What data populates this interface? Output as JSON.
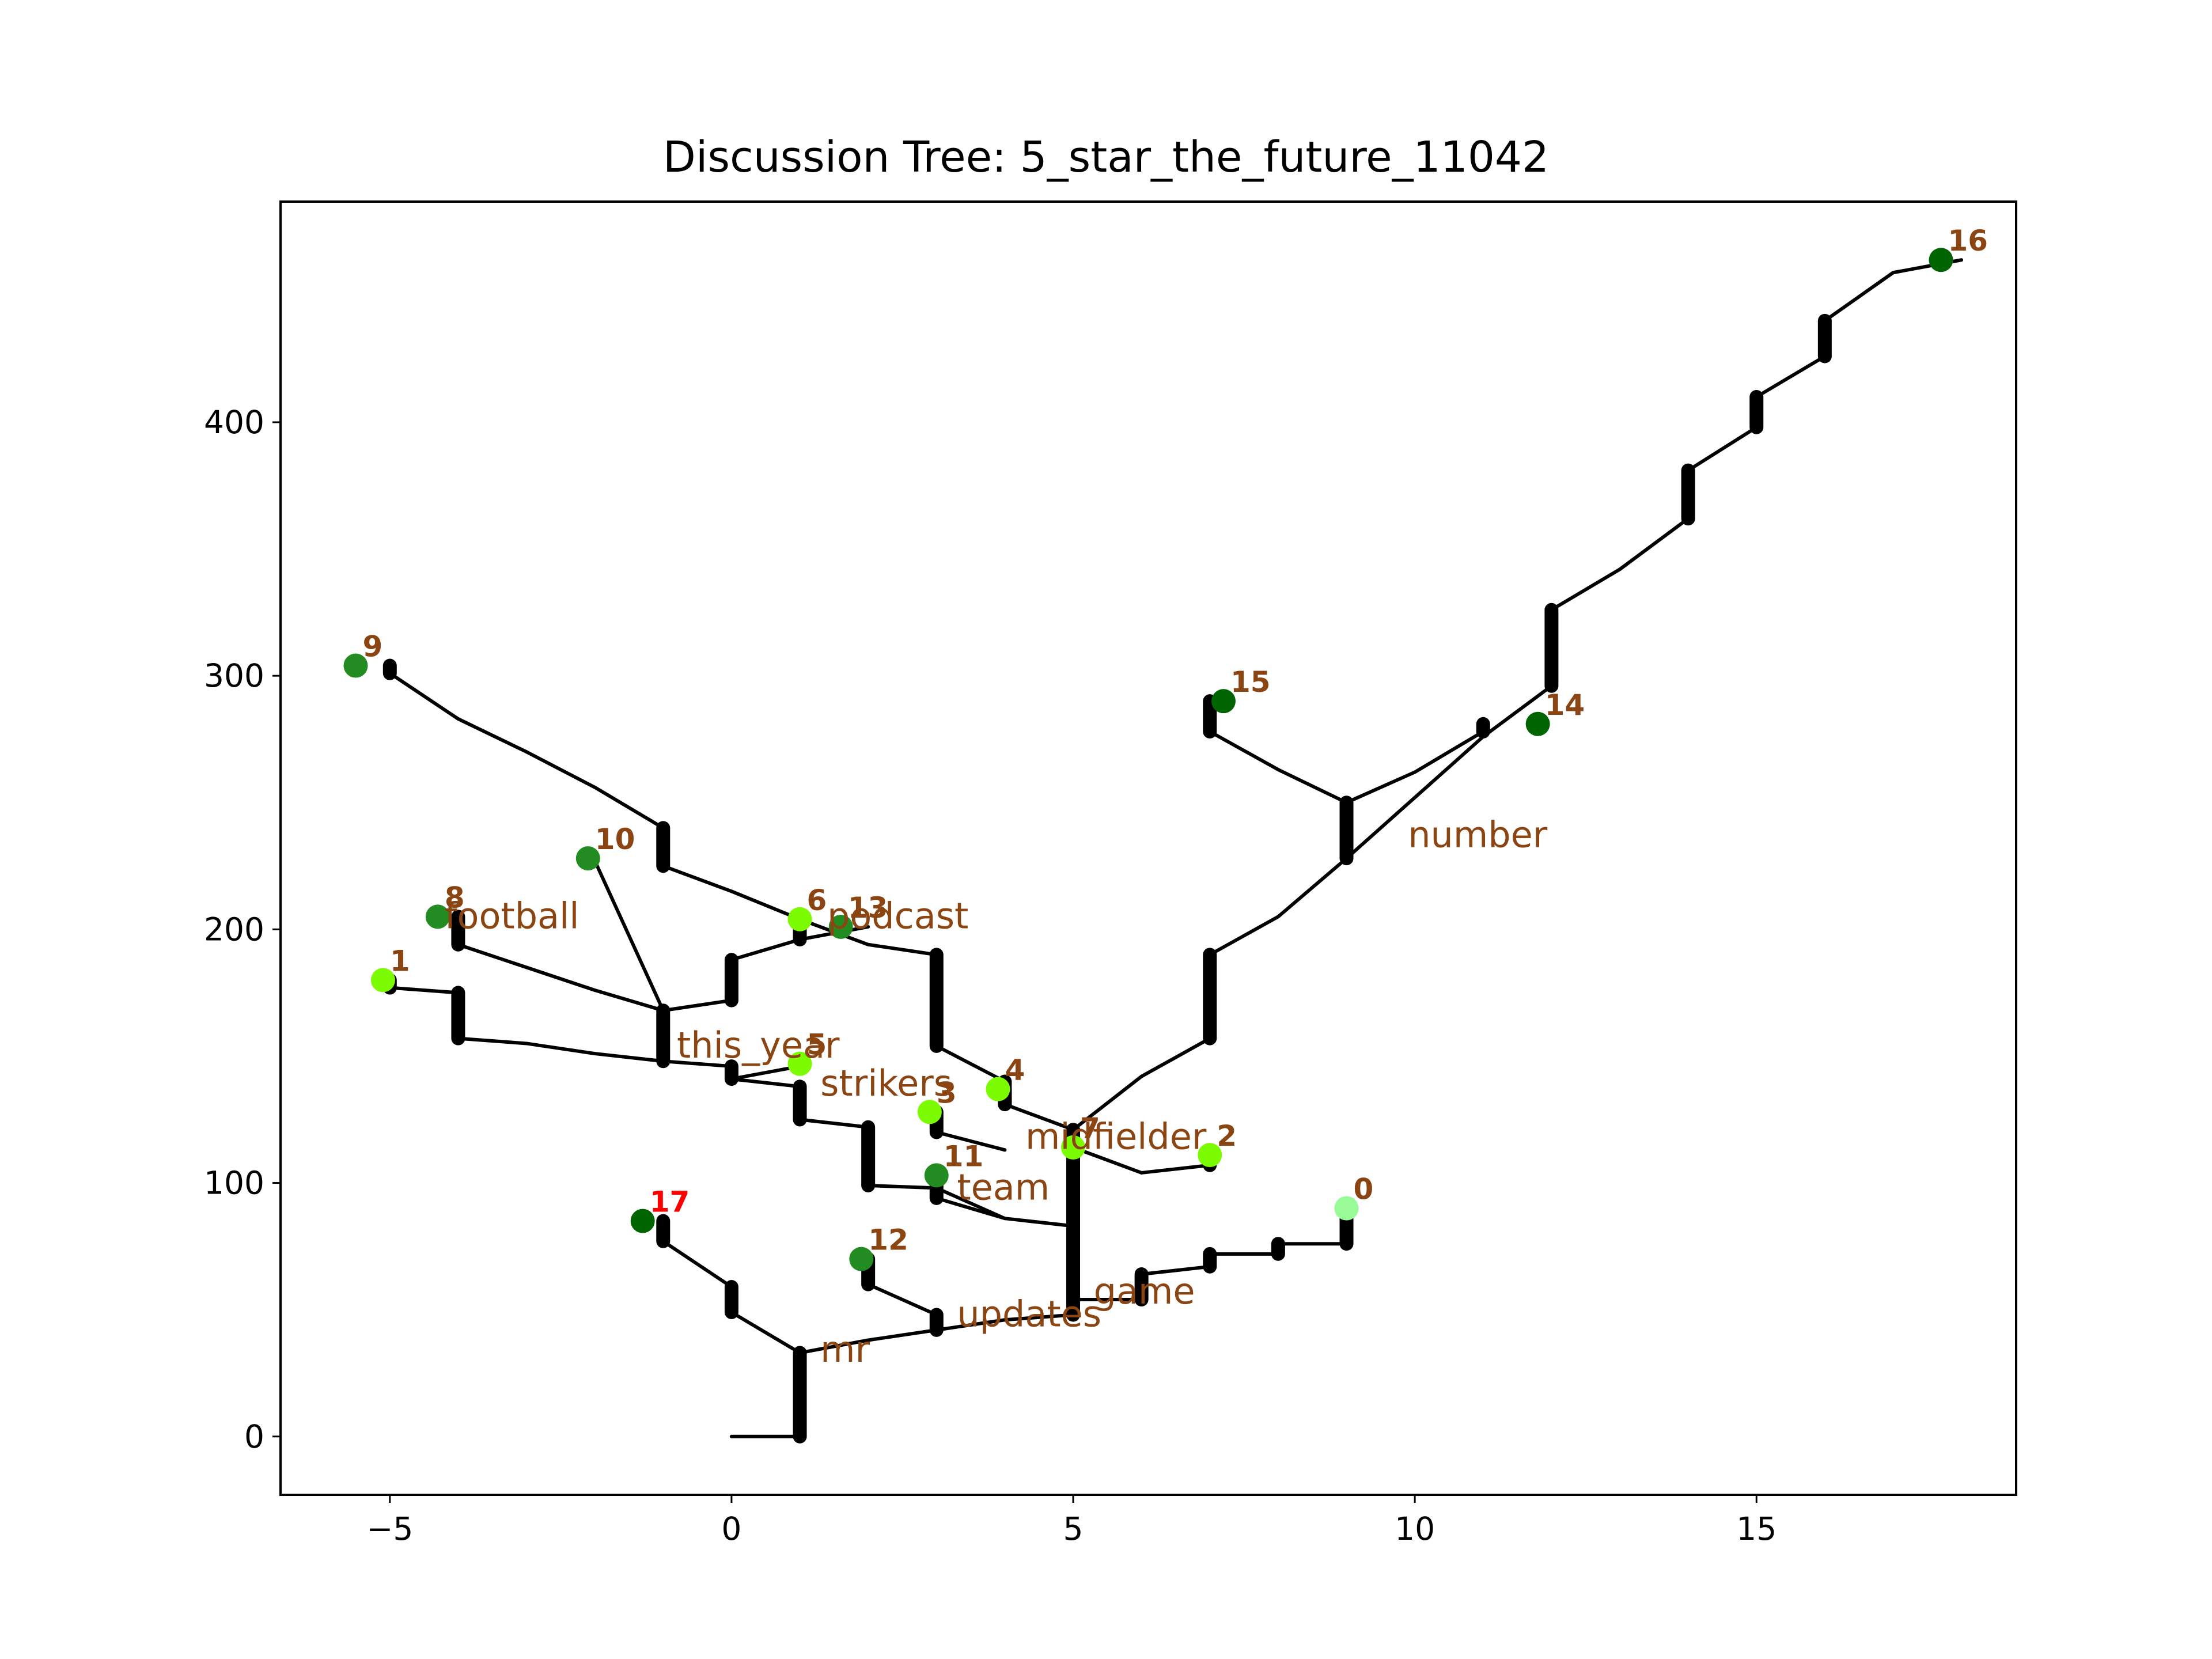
{
  "chart_data": {
    "type": "scatter",
    "title": "Discussion Tree: 5_star_the_future_11042",
    "xlabel": "",
    "ylabel": "",
    "xlim": [
      -6.6,
      18.8
    ],
    "ylim": [
      -23,
      487
    ],
    "x_ticks": [
      -5,
      0,
      5,
      10,
      15
    ],
    "y_ticks": [
      0,
      100,
      200,
      300,
      400
    ],
    "grid": false,
    "label_color": "#8B4513",
    "highlight_label_color": "#FF0000",
    "edge_color": "#000000",
    "edges": [
      [
        [
          0,
          0
        ],
        [
          1,
          0
        ],
        [
          1,
          33
        ],
        [
          2,
          38
        ],
        [
          3,
          42
        ],
        [
          4,
          46
        ],
        [
          5,
          48
        ],
        [
          5,
          54
        ]
      ],
      [
        [
          5,
          54
        ],
        [
          5,
          83
        ],
        [
          5,
          114
        ]
      ],
      [
        [
          5,
          83
        ],
        [
          4,
          86
        ],
        [
          3,
          94
        ],
        [
          3,
          103
        ]
      ],
      [
        [
          4,
          86
        ],
        [
          3,
          98
        ],
        [
          2,
          99
        ],
        [
          2,
          122
        ],
        [
          1,
          125
        ],
        [
          1,
          138
        ],
        [
          0,
          141
        ],
        [
          0,
          146
        ],
        [
          -1,
          148
        ],
        [
          -1,
          168
        ],
        [
          -2,
          176
        ],
        [
          -3,
          185
        ],
        [
          -4,
          194
        ],
        [
          -4,
          205
        ]
      ],
      [
        [
          -1,
          168
        ],
        [
          0,
          172
        ],
        [
          0,
          188
        ],
        [
          1,
          196
        ],
        [
          1,
          204
        ]
      ],
      [
        [
          -1,
          148
        ],
        [
          -2,
          151
        ],
        [
          -3,
          155
        ],
        [
          -4,
          157
        ],
        [
          -4,
          175
        ],
        [
          -5,
          177
        ],
        [
          -5,
          180
        ]
      ],
      [
        [
          0,
          141
        ],
        [
          1,
          146
        ],
        [
          1,
          147
        ]
      ],
      [
        [
          1,
          204
        ],
        [
          2,
          194
        ],
        [
          3,
          190
        ],
        [
          3,
          154
        ],
        [
          4,
          140
        ],
        [
          4,
          131
        ],
        [
          5,
          121
        ]
      ],
      [
        [
          1,
          196
        ],
        [
          2,
          201
        ]
      ],
      [
        [
          4,
          131
        ],
        [
          4,
          137
        ]
      ],
      [
        [
          5,
          114
        ],
        [
          5,
          121
        ],
        [
          6,
          142
        ],
        [
          7,
          157
        ],
        [
          7,
          190
        ],
        [
          8,
          205
        ],
        [
          9,
          228
        ],
        [
          9,
          250
        ],
        [
          8,
          263
        ],
        [
          7,
          278
        ],
        [
          7,
          290
        ]
      ],
      [
        [
          9,
          250
        ],
        [
          10,
          262
        ],
        [
          11,
          278
        ],
        [
          11,
          281
        ]
      ],
      [
        [
          9,
          228
        ],
        [
          10,
          252
        ],
        [
          11,
          276
        ],
        [
          12,
          296
        ],
        [
          12,
          326
        ],
        [
          13,
          342
        ],
        [
          14,
          362
        ],
        [
          14,
          381
        ],
        [
          15,
          398
        ],
        [
          15,
          410
        ],
        [
          16,
          426
        ],
        [
          16,
          440
        ],
        [
          17,
          459
        ],
        [
          18,
          464
        ]
      ],
      [
        [
          3,
          120
        ],
        [
          3,
          128
        ]
      ],
      [
        [
          3,
          120
        ],
        [
          4,
          113
        ]
      ],
      [
        [
          5,
          114
        ],
        [
          6,
          104
        ]
      ],
      [
        [
          6,
          104
        ],
        [
          7,
          107
        ],
        [
          7,
          112
        ]
      ],
      [
        [
          5,
          54
        ],
        [
          6,
          54
        ],
        [
          6,
          64
        ],
        [
          7,
          67
        ],
        [
          7,
          72
        ],
        [
          8,
          72
        ],
        [
          8,
          76
        ],
        [
          9,
          76
        ],
        [
          9,
          90
        ]
      ],
      [
        [
          3,
          42
        ],
        [
          3,
          48
        ],
        [
          2,
          60
        ],
        [
          2,
          70
        ]
      ],
      [
        [
          1,
          33
        ],
        [
          0,
          49
        ],
        [
          0,
          59
        ],
        [
          -1,
          77
        ],
        [
          -1,
          85
        ]
      ],
      [
        [
          -1,
          168
        ],
        [
          -2,
          227
        ]
      ],
      [
        [
          -1,
          240
        ],
        [
          -2,
          256
        ],
        [
          -3,
          270
        ],
        [
          -4,
          283
        ],
        [
          -5,
          301
        ],
        [
          -5,
          304
        ]
      ],
      [
        [
          -1,
          225
        ],
        [
          -1,
          240
        ]
      ],
      [
        [
          1,
          204
        ],
        [
          0,
          215
        ],
        [
          -1,
          225
        ]
      ]
    ],
    "nodes": [
      {
        "label": "0",
        "x": 9.0,
        "y": 90,
        "color": "#98FB98"
      },
      {
        "label": "1",
        "x": -5.1,
        "y": 180,
        "color": "#7CFC00"
      },
      {
        "label": "2",
        "x": 7.0,
        "y": 111,
        "color": "#7CFC00"
      },
      {
        "label": "3",
        "x": 2.9,
        "y": 128,
        "color": "#7CFC00"
      },
      {
        "label": "4",
        "x": 3.9,
        "y": 137,
        "color": "#7CFC00"
      },
      {
        "label": "5",
        "x": 1.0,
        "y": 147,
        "color": "#7CFC00"
      },
      {
        "label": "6",
        "x": 1.0,
        "y": 204,
        "color": "#7CFC00"
      },
      {
        "label": "7",
        "x": 5.0,
        "y": 114,
        "color": "#7CFC00"
      },
      {
        "label": "8",
        "x": -4.3,
        "y": 205,
        "color": "#228B22"
      },
      {
        "label": "9",
        "x": -5.5,
        "y": 304,
        "color": "#228B22"
      },
      {
        "label": "10",
        "x": -2.1,
        "y": 228,
        "color": "#228B22"
      },
      {
        "label": "11",
        "x": 3.0,
        "y": 103,
        "color": "#228B22"
      },
      {
        "label": "12",
        "x": 1.9,
        "y": 70,
        "color": "#228B22"
      },
      {
        "label": "13",
        "x": 1.6,
        "y": 201,
        "color": "#228B22"
      },
      {
        "label": "14",
        "x": 11.8,
        "y": 281,
        "color": "#006400"
      },
      {
        "label": "15",
        "x": 7.2,
        "y": 290,
        "color": "#006400"
      },
      {
        "label": "16",
        "x": 17.7,
        "y": 464,
        "color": "#006400"
      },
      {
        "label": "17",
        "x": -1.3,
        "y": 85,
        "color": "#006400",
        "highlight": true
      }
    ],
    "annotations": [
      {
        "text": "number",
        "x": 9.9,
        "y": 237
      },
      {
        "text": "football",
        "x": -4.2,
        "y": 205
      },
      {
        "text": "podcast",
        "x": 1.4,
        "y": 205
      },
      {
        "text": "this_year",
        "x": -0.8,
        "y": 154
      },
      {
        "text": "strikers",
        "x": 1.3,
        "y": 139
      },
      {
        "text": "midfielder",
        "x": 4.3,
        "y": 118
      },
      {
        "text": "team",
        "x": 3.3,
        "y": 98
      },
      {
        "text": "game",
        "x": 5.3,
        "y": 57
      },
      {
        "text": "updates",
        "x": 3.3,
        "y": 48
      },
      {
        "text": "mr",
        "x": 1.3,
        "y": 34
      }
    ]
  }
}
